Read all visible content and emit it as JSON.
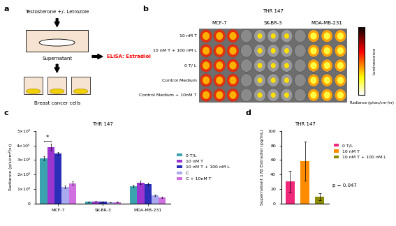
{
  "panel_labels": [
    "a",
    "b",
    "c",
    "d"
  ],
  "diagram": {
    "top": "Testosterone +/- Letrozole",
    "middle": "Supernatant",
    "assay": "ELISA: Estradiol",
    "bottom": "Breast cancer cells"
  },
  "plate_image": {
    "title": "THR 147",
    "columns": [
      "MCF-7",
      "SK-BR-3",
      "MDA-MB-231"
    ],
    "rows": [
      "10 nM T",
      "10 nM T + 100 nM L",
      "0 T/ L",
      "Control Medium",
      "Control Medium + 10nM T"
    ],
    "colorbar_label": "Luminescence",
    "colorbar_units": "Radiance (p/sec/cm²/sr)"
  },
  "chart_data": [
    {
      "type": "bar",
      "title": "THR 147",
      "y_label": "Radiance (p/s/cm²/sr)",
      "categories": [
        "MCF-7",
        "SK-BR-3",
        "MDA-MB-231"
      ],
      "series": [
        {
          "name": "0 T/L",
          "color": "#3aa3ae",
          "values": [
            310000,
            12000,
            120000
          ],
          "errors": [
            15000,
            2000,
            8000
          ]
        },
        {
          "name": "10 nM T",
          "color": "#9b35cf",
          "values": [
            390000,
            13000,
            145000
          ],
          "errors": [
            25000,
            2000,
            10000
          ]
        },
        {
          "name": "10 nM T + 100 nM L",
          "color": "#2b2fb8",
          "values": [
            345000,
            12000,
            135000
          ],
          "errors": [
            10000,
            2000,
            10000
          ]
        },
        {
          "name": "C",
          "color": "#a9a9ef",
          "values": [
            115000,
            8000,
            55000
          ],
          "errors": [
            10000,
            1500,
            5000
          ]
        },
        {
          "name": "C + 10nM T",
          "color": "#d070e0",
          "values": [
            140000,
            9000,
            40000
          ],
          "errors": [
            12000,
            1500,
            5000
          ]
        }
      ],
      "ylim": [
        0,
        500000
      ],
      "yticks": [
        0,
        {
          "value": 100000,
          "label": "1×10⁵"
        },
        {
          "value": 200000,
          "label": "2×10⁵"
        },
        {
          "value": 300000,
          "label": "3×10⁵"
        },
        {
          "value": 400000,
          "label": "4×10⁵"
        },
        {
          "value": 500000,
          "label": "5×10⁵"
        }
      ],
      "annotation": "*",
      "legend": "center left"
    },
    {
      "type": "bar",
      "title": "THR 147",
      "y_label": "Supernatant 17β Estradiol (pg/mL)",
      "categories": [
        "0 T/L",
        "10 nM T",
        "10 nM T + 100 nM L"
      ],
      "values": [
        30,
        58,
        9
      ],
      "errors": [
        15,
        27,
        5
      ],
      "colors": [
        "#f0287a",
        "#ff8c00",
        "#8b8b00"
      ],
      "ylim": [
        0,
        100
      ],
      "yticks": [
        0,
        20,
        40,
        60,
        80,
        100
      ],
      "annotation": "p = 0.047",
      "tick_labels": "y",
      "legend": "center left"
    }
  ]
}
